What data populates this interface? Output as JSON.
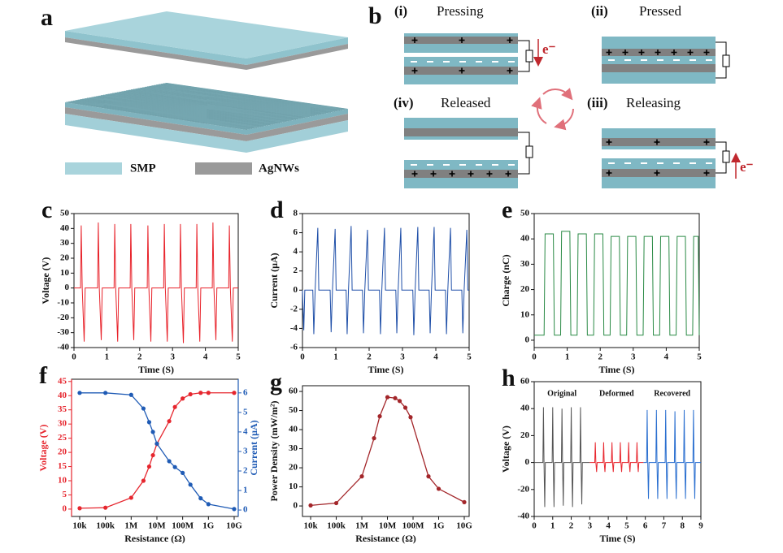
{
  "diagrams": {
    "a": {
      "label": "a",
      "legend": [
        "SMP",
        "AgNWs"
      ]
    },
    "b": {
      "label": "b",
      "electron": "e⁻",
      "states": [
        {
          "numeral": "(i)",
          "name": "Pressing"
        },
        {
          "numeral": "(ii)",
          "name": "Pressed"
        },
        {
          "numeral": "(iii)",
          "name": "Releasing"
        },
        {
          "numeral": "(iv)",
          "name": "Released"
        }
      ]
    }
  },
  "chart_data": [
    {
      "type": "line",
      "label": "c",
      "xlabel": "Time (S)",
      "ylabel": "Voltage (V)",
      "xlim": [
        0,
        5
      ],
      "xticks": [
        0,
        1,
        2,
        3,
        4,
        5
      ],
      "ylim": [
        -40,
        50
      ],
      "yticks": [
        -40,
        -30,
        -20,
        -10,
        0,
        10,
        20,
        30,
        40,
        50
      ],
      "series": [
        {
          "color": "#e8222a",
          "x": [
            0,
            0.2,
            0.22,
            0.25,
            0.31,
            0.34,
            0.72,
            0.74,
            0.77,
            0.83,
            0.86,
            1.22,
            1.24,
            1.27,
            1.33,
            1.36,
            1.71,
            1.73,
            1.76,
            1.82,
            1.85,
            2.23,
            2.25,
            2.28,
            2.34,
            2.37,
            2.73,
            2.75,
            2.78,
            2.84,
            2.87,
            3.22,
            3.24,
            3.27,
            3.33,
            3.36,
            3.72,
            3.74,
            3.77,
            3.83,
            3.86,
            4.21,
            4.23,
            4.26,
            4.32,
            4.35,
            4.71,
            4.73,
            4.76,
            4.82,
            4.85,
            5
          ],
          "values": [
            0,
            0,
            42,
            0,
            -36,
            0,
            0,
            44,
            0,
            -35,
            0,
            0,
            43,
            0,
            -36,
            0,
            0,
            43,
            0,
            -35,
            0,
            0,
            42,
            0,
            -36,
            0,
            0,
            43,
            0,
            -36,
            0,
            0,
            43,
            0,
            -37,
            0,
            0,
            43,
            0,
            -36,
            0,
            0,
            44,
            0,
            -35,
            0,
            0,
            42,
            0,
            -36,
            0,
            0
          ]
        }
      ]
    },
    {
      "type": "line",
      "label": "d",
      "xlabel": "Time (S)",
      "ylabel": "Current (µA)",
      "xlim": [
        0,
        5
      ],
      "xticks": [
        0,
        1,
        2,
        3,
        4,
        5
      ],
      "ylim": [
        -6,
        8
      ],
      "yticks": [
        -6,
        -4,
        -2,
        0,
        2,
        4,
        6,
        8
      ],
      "series": [
        {
          "color": "#1f4fa8",
          "x": [
            0,
            0.04,
            0.07,
            0.31,
            0.34,
            0.38,
            0.46,
            0.49,
            0.83,
            0.86,
            0.9,
            0.98,
            1.01,
            1.31,
            1.34,
            1.38,
            1.46,
            1.49,
            1.8,
            1.83,
            1.87,
            1.95,
            1.98,
            2.31,
            2.34,
            2.38,
            2.46,
            2.49,
            2.8,
            2.83,
            2.87,
            2.95,
            2.98,
            3.31,
            3.34,
            3.38,
            3.46,
            3.49,
            3.8,
            3.83,
            3.87,
            3.95,
            3.98,
            4.29,
            4.32,
            4.36,
            4.44,
            4.47,
            4.78,
            4.81,
            4.85,
            4.93,
            4.96,
            5
          ],
          "values": [
            0,
            -4.2,
            0,
            0,
            -4.6,
            0,
            6.5,
            0,
            0,
            -4.4,
            0,
            6.4,
            0,
            0,
            -4.6,
            0,
            6.7,
            0,
            0,
            -4.5,
            0,
            6.3,
            0,
            0,
            -4.6,
            0,
            6.5,
            0,
            0,
            -4.5,
            0,
            6.5,
            0,
            0,
            -4.7,
            0,
            6.6,
            0,
            0,
            -4.5,
            0,
            6.6,
            0,
            0,
            -4.6,
            0,
            6.5,
            0,
            0,
            -4.5,
            0,
            6.3,
            0,
            0
          ]
        }
      ]
    },
    {
      "type": "line",
      "label": "e",
      "xlabel": "Time (S)",
      "ylabel": "Charge (nC)",
      "xlim": [
        0,
        5
      ],
      "xticks": [
        0,
        1,
        2,
        3,
        4,
        5
      ],
      "ylim": [
        -2.9,
        50
      ],
      "yticks": [
        0,
        10,
        20,
        30,
        40,
        50
      ],
      "series": [
        {
          "color": "#2a8a45",
          "x": [
            0,
            0.3,
            0.33,
            0.58,
            0.61,
            0.8,
            0.83,
            1.08,
            1.11,
            1.3,
            1.33,
            1.58,
            1.61,
            1.8,
            1.83,
            2.08,
            2.11,
            2.3,
            2.33,
            2.58,
            2.61,
            2.8,
            2.83,
            3.08,
            3.11,
            3.3,
            3.33,
            3.58,
            3.61,
            3.8,
            3.83,
            4.08,
            4.11,
            4.3,
            4.33,
            4.58,
            4.61,
            4.8,
            4.83,
            4.97,
            5
          ],
          "values": [
            2,
            2,
            42,
            42,
            2,
            2,
            43,
            43,
            2,
            2,
            42,
            42,
            2,
            2,
            42,
            42,
            2,
            2,
            41,
            41,
            2,
            2,
            41,
            41,
            2,
            2,
            41,
            41,
            2,
            2,
            41,
            41,
            2,
            2,
            41,
            41,
            2,
            2,
            41,
            41,
            2
          ]
        }
      ]
    },
    {
      "type": "line",
      "label": "f",
      "markers": true,
      "xscale": "log",
      "xlabel": "Resistance (Ω)",
      "ylabel": "Voltage (V)",
      "y2label": "Current (µA)",
      "xlim": [
        4840,
        14400000000
      ],
      "xticks": [
        {
          "value": 10000,
          "label": "10k"
        },
        {
          "value": 100000,
          "label": "100k"
        },
        {
          "value": 1000000,
          "label": "1M"
        },
        {
          "value": 10000000,
          "label": "10M"
        },
        {
          "value": 100000000,
          "label": "100M"
        },
        {
          "value": 1000000000,
          "label": "1G"
        },
        {
          "value": 10000000000,
          "label": "10G"
        }
      ],
      "ylim": [
        -2.6,
        45.8
      ],
      "yticks": [
        0,
        5,
        10,
        15,
        20,
        25,
        30,
        35,
        40,
        45
      ],
      "y2lim": [
        -0.33,
        6.7
      ],
      "y2ticks": [
        0,
        1,
        2,
        3,
        4,
        5,
        6
      ],
      "x": [
        10000,
        100000,
        1000000,
        3000000,
        5000000,
        7000000,
        10000000,
        30000000,
        50000000,
        100000000,
        200000000,
        500000000,
        1000000000,
        10000000000
      ],
      "series": [
        {
          "color": "#e6262e",
          "values": [
            0.3,
            0.5,
            4,
            10,
            15,
            19,
            23,
            31,
            36,
            39,
            40.5,
            41,
            41,
            41
          ]
        },
        {
          "color": "#1f5bb5",
          "axis": "y2",
          "values": [
            6,
            6,
            5.9,
            5.2,
            4.5,
            4.0,
            3.4,
            2.5,
            2.2,
            1.9,
            1.3,
            0.6,
            0.3,
            0.05
          ]
        }
      ]
    },
    {
      "type": "line",
      "label": "g",
      "markers": true,
      "xscale": "log",
      "xlabel": "Resistance (Ω)",
      "ylabel": "Power Density (mW/m²)",
      "xlim": [
        4800,
        15500000000
      ],
      "xticks": [
        {
          "value": 10000,
          "label": "10k"
        },
        {
          "value": 100000,
          "label": "100k"
        },
        {
          "value": 1000000,
          "label": "1M"
        },
        {
          "value": 10000000,
          "label": "10M"
        },
        {
          "value": 100000000,
          "label": "100M"
        },
        {
          "value": 1000000000,
          "label": "1G"
        },
        {
          "value": 10000000000,
          "label": "10G"
        }
      ],
      "ylim": [
        -5.5,
        63
      ],
      "yticks": [
        0,
        10,
        20,
        30,
        40,
        50,
        60
      ],
      "x": [
        10000,
        100000,
        1000000,
        3000000,
        5000000,
        10000000,
        20000000,
        30000000,
        50000000,
        80000000,
        400000000,
        1000000000,
        10000000000
      ],
      "series": [
        {
          "color": "#a3262a",
          "values": [
            0.3,
            1.5,
            15.5,
            35.5,
            47,
            57,
            56.5,
            55,
            51.5,
            46.5,
            15.5,
            9,
            2
          ]
        }
      ]
    },
    {
      "type": "line",
      "label": "h",
      "xlabel": "Time (S)",
      "ylabel": "Voltage (V)",
      "xlim": [
        0,
        9
      ],
      "xticks": [
        0,
        1,
        2,
        3,
        4,
        5,
        6,
        7,
        8,
        9
      ],
      "ylim": [
        -40,
        60
      ],
      "yticks": [
        -40,
        -20,
        0,
        20,
        40,
        60
      ],
      "series": [
        {
          "name": "Original",
          "color": "#555555",
          "x": [
            0,
            0.47,
            0.5,
            0.53,
            0.57,
            0.6,
            0.97,
            1.0,
            1.03,
            1.07,
            1.1,
            1.47,
            1.5,
            1.53,
            1.57,
            1.6,
            1.97,
            2.0,
            2.03,
            2.07,
            2.1,
            2.47,
            2.5,
            2.53,
            2.57,
            2.6,
            3.0
          ],
          "values": [
            0,
            0,
            41,
            0,
            -33,
            0,
            0,
            41,
            0,
            -33,
            0,
            0,
            40,
            0,
            -32,
            0,
            0,
            41,
            0,
            -33,
            0,
            0,
            41,
            0,
            -31,
            0,
            0
          ]
        },
        {
          "name": "Deformed",
          "color": "#e8262e",
          "x": [
            3.0,
            3.27,
            3.3,
            3.33,
            3.37,
            3.4,
            3.72,
            3.75,
            3.78,
            3.82,
            3.85,
            4.17,
            4.2,
            4.23,
            4.27,
            4.3,
            4.62,
            4.65,
            4.68,
            4.72,
            4.75,
            5.07,
            5.1,
            5.13,
            5.17,
            5.2,
            5.52,
            5.55,
            5.58,
            5.62,
            5.65,
            5.9
          ],
          "values": [
            0,
            0,
            15,
            0,
            -7,
            0,
            0,
            15,
            0,
            -7,
            0,
            0,
            15,
            0,
            -7,
            0,
            0,
            15,
            0,
            -7,
            0,
            0,
            15,
            0,
            -7,
            0,
            0,
            15,
            0,
            -7,
            0,
            0
          ]
        },
        {
          "name": "Recovered",
          "color": "#2a6fd0",
          "x": [
            5.9,
            6.07,
            6.1,
            6.13,
            6.17,
            6.2,
            6.57,
            6.6,
            6.63,
            6.67,
            6.7,
            7.07,
            7.1,
            7.13,
            7.17,
            7.2,
            7.57,
            7.6,
            7.63,
            7.67,
            7.7,
            8.07,
            8.1,
            8.13,
            8.17,
            8.2,
            8.57,
            8.6,
            8.63,
            8.67,
            8.7,
            9
          ],
          "values": [
            0,
            0,
            39,
            0,
            -27,
            0,
            0,
            39,
            0,
            -27,
            0,
            0,
            39,
            0,
            -27,
            0,
            0,
            38,
            0,
            -27,
            0,
            0,
            39,
            0,
            -27,
            0,
            0,
            39,
            0,
            -27,
            0,
            0
          ]
        }
      ]
    }
  ]
}
